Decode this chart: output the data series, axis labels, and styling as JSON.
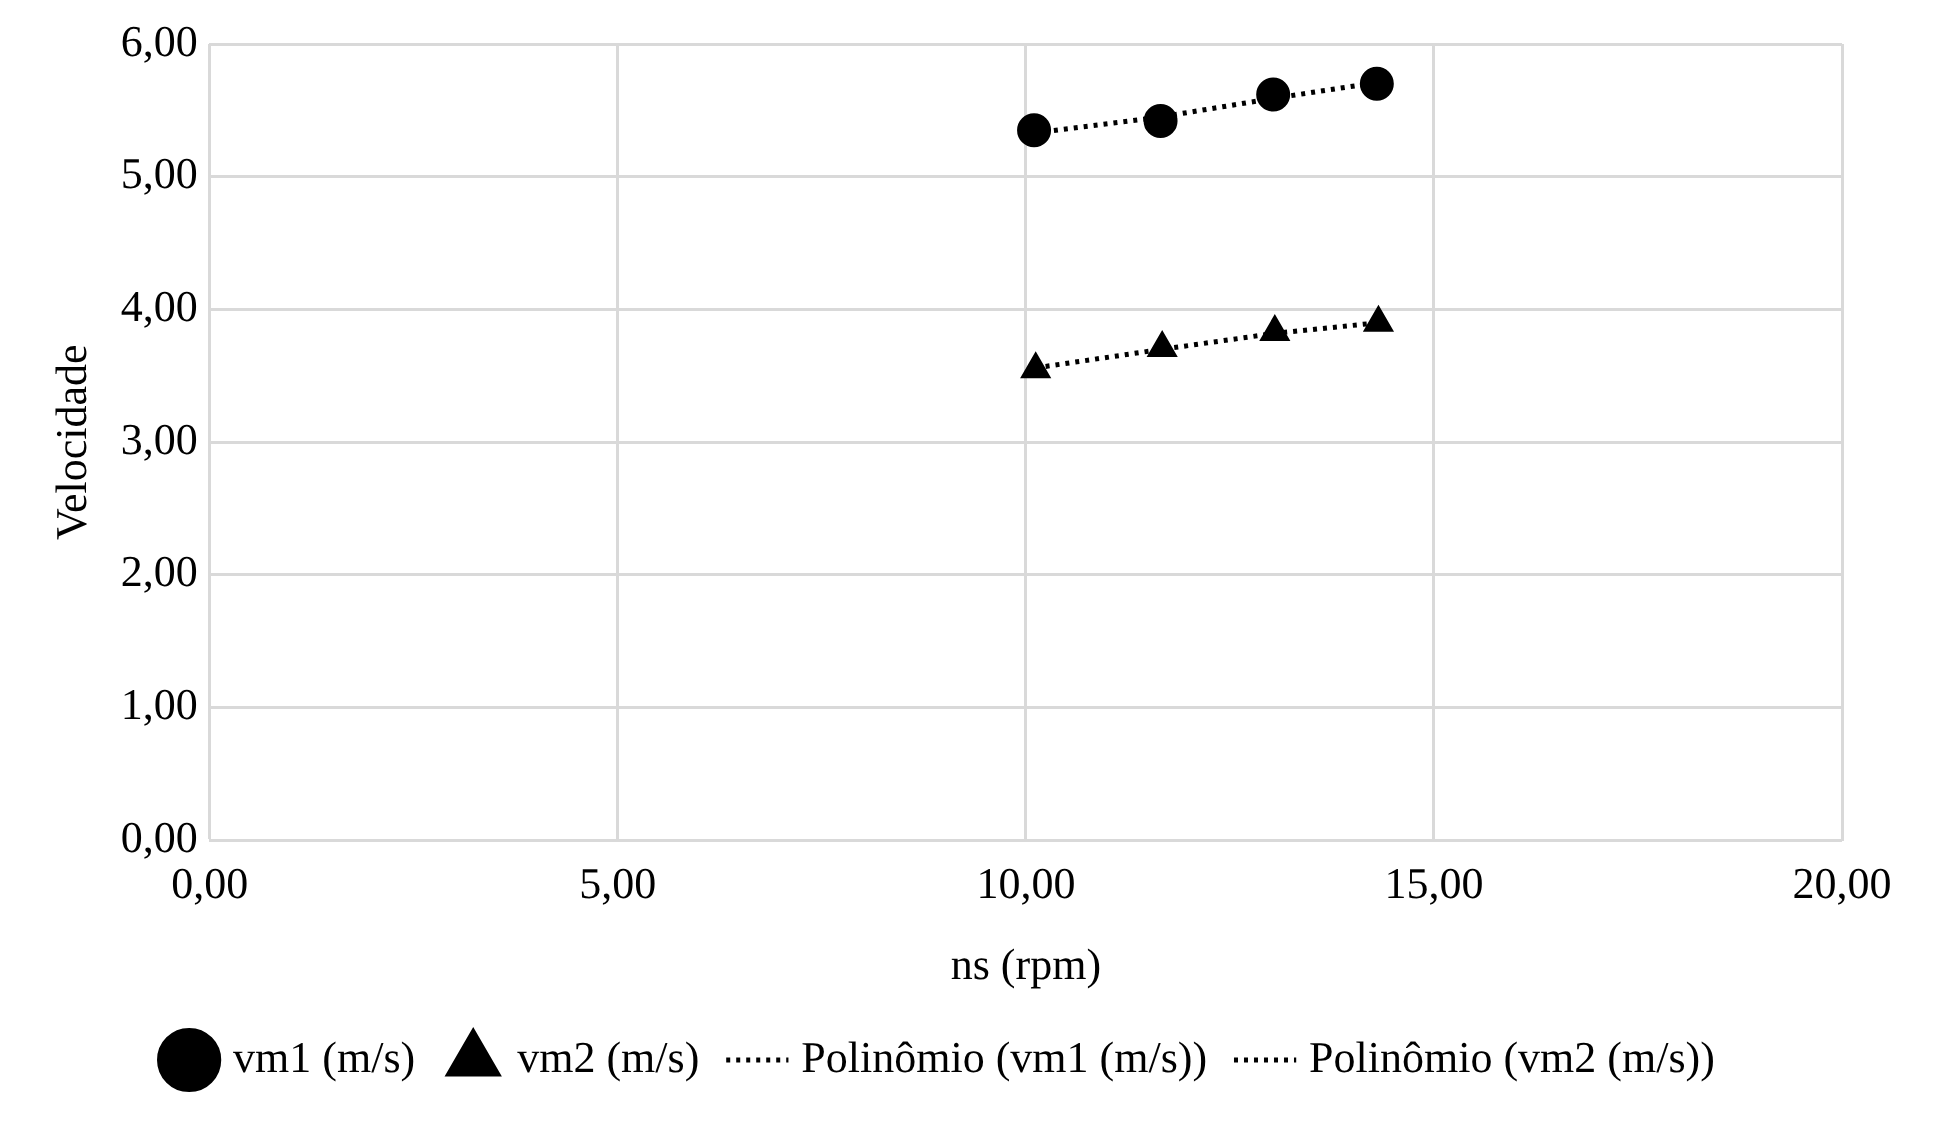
{
  "chart_data": {
    "type": "scatter",
    "xlabel": "ns (rpm)",
    "ylabel": "Velocidade",
    "xlim": [
      0,
      20
    ],
    "xticks": [
      {
        "value": 0,
        "label": "0,00"
      },
      {
        "value": 5,
        "label": "5,00"
      },
      {
        "value": 10,
        "label": "10,00"
      },
      {
        "value": 15,
        "label": "15,00"
      },
      {
        "value": 20,
        "label": "20,00"
      }
    ],
    "ylim": [
      0,
      6
    ],
    "yticks": [
      {
        "value": 0,
        "label": "0,00"
      },
      {
        "value": 1,
        "label": "1,00"
      },
      {
        "value": 2,
        "label": "2,00"
      },
      {
        "value": 3,
        "label": "3,00"
      },
      {
        "value": 4,
        "label": "4,00"
      },
      {
        "value": 5,
        "label": "5,00"
      },
      {
        "value": 6,
        "label": "6,00"
      }
    ],
    "grid": true,
    "legend": "bottom",
    "series": [
      {
        "name": "vm1 (m/s)",
        "type": "scatter",
        "marker": "circle",
        "color": "#000000",
        "x": [
          10.1,
          11.65,
          13.03,
          14.3
        ],
        "values": [
          5.35,
          5.42,
          5.62,
          5.7
        ]
      },
      {
        "name": "vm2 (m/s)",
        "type": "scatter",
        "marker": "triangle",
        "color": "#000000",
        "x": [
          10.12,
          11.67,
          13.05,
          14.32
        ],
        "values": [
          3.55,
          3.71,
          3.83,
          3.9
        ]
      },
      {
        "name": "Polinômio (vm1 (m/s))",
        "type": "line",
        "marker": "none",
        "line_style": "dotted",
        "color": "#000000",
        "x": [
          10.1,
          11.65,
          13.03,
          14.3
        ],
        "values": [
          5.33,
          5.45,
          5.59,
          5.71
        ]
      },
      {
        "name": "Polinômio (vm2 (m/s))",
        "type": "line",
        "marker": "none",
        "line_style": "dotted",
        "color": "#000000",
        "x": [
          10.12,
          11.67,
          13.05,
          14.32
        ],
        "values": [
          3.56,
          3.7,
          3.82,
          3.9
        ]
      }
    ]
  }
}
